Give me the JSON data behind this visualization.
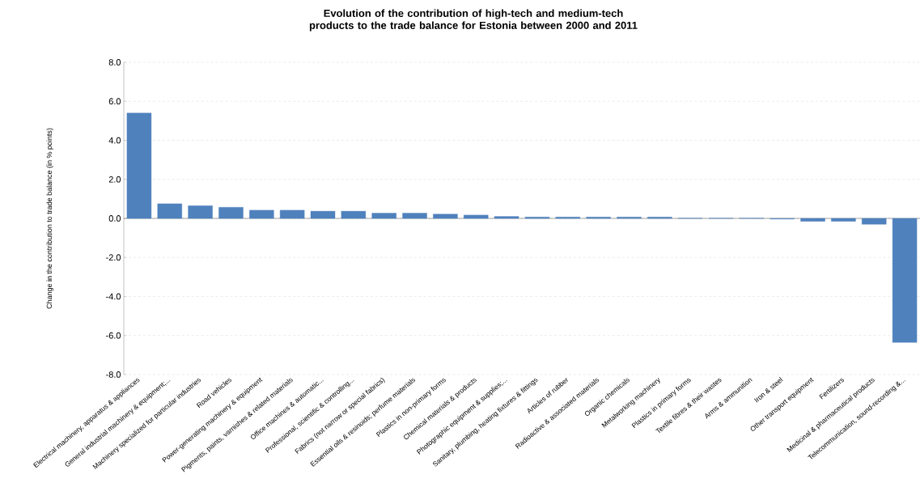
{
  "chart_data": {
    "type": "bar",
    "title": "Evolution of the contribution of high-tech and medium-tech products to the trade balance for Estonia between 2000 and 2011",
    "ylabel": "Change in the contribution to trade balance (in % points)",
    "categories": [
      "Electrical machinery, apparatus & appliances",
      "General industrial machinery & equipment;...",
      "Machinery specialized for particular industries",
      "Road vehicles",
      "Power-generating machinery & equipment",
      "Pigments, paints, varnishes & related materials",
      "Office machines & automatic...",
      "Professional, scientific & controlling...",
      "Fabrics (not narrow or special fabrics)",
      "Essential oils & resinoids; perfume materials",
      "Plastics in non-primary forms",
      "Chemical materials & products",
      "Photographic equipment & supplies;...",
      "Sanitary, plumbing, heating fixtures & fittings",
      "Articles of rubber",
      "Radioactive & associated materials",
      "Organic chemicals",
      "Metalworking machinery",
      "Plastics in primary forms",
      "Textile fibres & their wastes",
      "Arms & ammunition",
      "Iron & steel",
      "Other transport equipment",
      "Fertilizers",
      "Medicinal & pharmaceutical products",
      "Telecommunication, sound-recording &..."
    ],
    "values": [
      5.4,
      0.75,
      0.65,
      0.57,
      0.42,
      0.42,
      0.37,
      0.37,
      0.27,
      0.27,
      0.22,
      0.17,
      0.1,
      0.07,
      0.07,
      0.07,
      0.07,
      0.07,
      0.01,
      0.01,
      0.01,
      -0.03,
      -0.15,
      -0.15,
      -0.3,
      -6.35
    ],
    "color": "#4f81bd",
    "ylim": [
      -8,
      8
    ],
    "yticks": [
      {
        "value": -8,
        "label": "-8.0"
      },
      {
        "value": -6,
        "label": "-6.0"
      },
      {
        "value": -4,
        "label": "-4.0"
      },
      {
        "value": -2,
        "label": "-2.0"
      },
      {
        "value": 0,
        "label": "0.0"
      },
      {
        "value": 2,
        "label": "2.0"
      },
      {
        "value": 4,
        "label": "4.0"
      },
      {
        "value": 6,
        "label": "6.0"
      },
      {
        "value": 8,
        "label": "8.0"
      }
    ],
    "grid": "y"
  }
}
